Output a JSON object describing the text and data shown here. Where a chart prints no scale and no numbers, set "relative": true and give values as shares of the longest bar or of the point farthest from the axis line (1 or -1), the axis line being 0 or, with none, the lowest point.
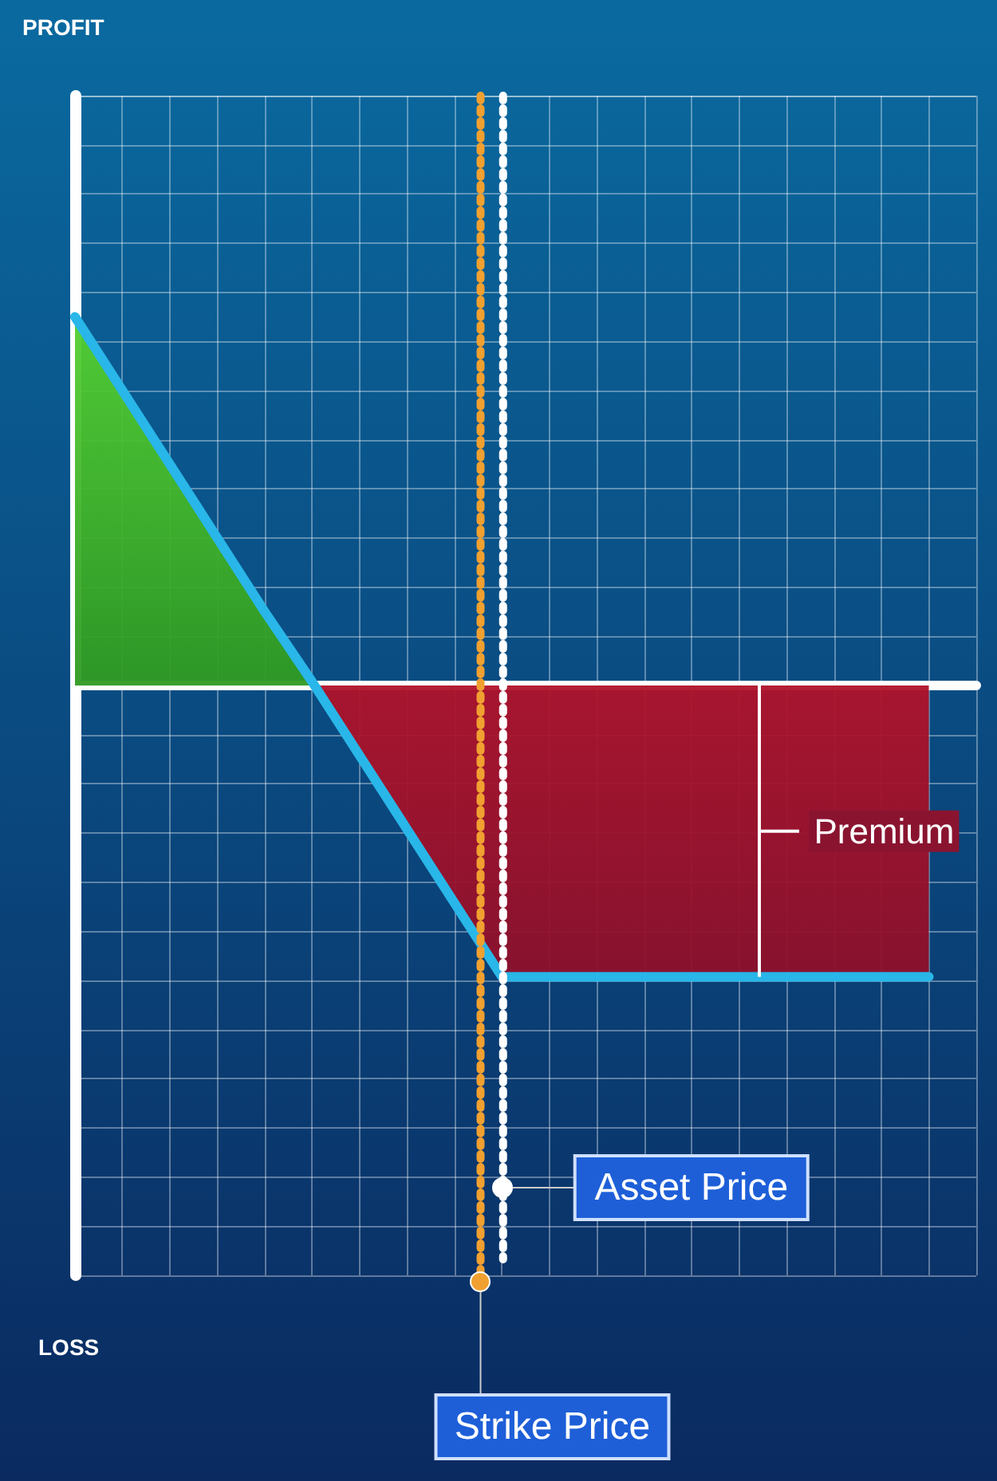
{
  "chart_data": {
    "type": "area",
    "relative": true,
    "grid": true,
    "categories": [
      null,
      null,
      null,
      null,
      null,
      null,
      null,
      null,
      null,
      null,
      null,
      null,
      null,
      null,
      null,
      null,
      null,
      null,
      null,
      null
    ],
    "series": [
      {
        "color": "#29b6e8",
        "values": [
          1,
          0.8,
          0.6,
          0.4,
          0.2,
          0.01,
          -0.19,
          -0.39,
          -0.59,
          -0.79,
          -0.79,
          -0.79,
          -0.79,
          -0.79,
          -0.79,
          -0.79,
          -0.79,
          -0.79,
          -0.79,
          null
        ]
      }
    ],
    "annotations": [
      "PROFIT",
      "LOSS",
      "Premium",
      "Strike Price",
      "Asset Price"
    ]
  }
}
